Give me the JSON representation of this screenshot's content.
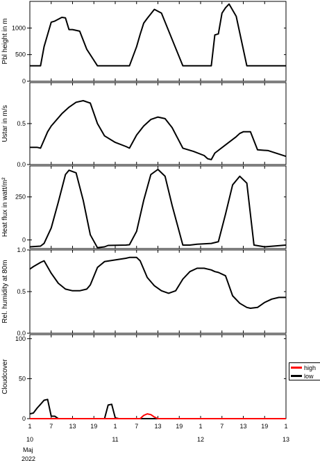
{
  "chart_data": [
    {
      "type": "line",
      "ylabel": "Pbl height in m",
      "ylim": [
        0,
        1500
      ],
      "yticks": [
        0,
        500,
        1000
      ],
      "x": [
        0,
        3,
        4,
        6,
        7,
        9,
        10,
        11,
        12,
        14,
        16,
        19,
        24,
        27,
        28,
        30,
        31,
        32,
        33,
        35,
        37,
        43,
        48,
        51,
        52,
        53,
        54,
        55,
        56,
        58,
        61,
        72
      ],
      "series": [
        {
          "name": "",
          "color": "#000000",
          "values": [
            290,
            290,
            650,
            1110,
            1130,
            1200,
            1190,
            970,
            970,
            940,
            600,
            290,
            290,
            290,
            290,
            650,
            880,
            1090,
            1180,
            1350,
            1280,
            290,
            290,
            290,
            870,
            890,
            1280,
            1380,
            1450,
            1220,
            290,
            290
          ]
        }
      ]
    },
    {
      "type": "line",
      "ylabel": "Ustar in m/s",
      "ylim": [
        0,
        1.0
      ],
      "yticks": [
        0.0,
        0.5
      ],
      "x": [
        0,
        2,
        3,
        5,
        6,
        9,
        11,
        13,
        15,
        17,
        19,
        21,
        24,
        27,
        28,
        30,
        32,
        34,
        36,
        38,
        40,
        43,
        46,
        49,
        50,
        51,
        52,
        55,
        58,
        59,
        60,
        62,
        64,
        67,
        72
      ],
      "series": [
        {
          "name": "",
          "color": "#000000",
          "values": [
            0.21,
            0.21,
            0.2,
            0.4,
            0.47,
            0.62,
            0.7,
            0.76,
            0.78,
            0.75,
            0.5,
            0.35,
            0.27,
            0.22,
            0.2,
            0.36,
            0.47,
            0.55,
            0.58,
            0.56,
            0.45,
            0.2,
            0.16,
            0.11,
            0.07,
            0.06,
            0.14,
            0.24,
            0.34,
            0.38,
            0.4,
            0.4,
            0.18,
            0.17,
            0.1
          ]
        }
      ]
    },
    {
      "type": "line",
      "ylabel": "Heat flux in watt/m²",
      "ylim": [
        -50,
        430
      ],
      "yticks": [
        0,
        250
      ],
      "x": [
        0,
        3,
        4,
        6,
        8,
        10,
        11,
        13,
        15,
        17,
        19,
        21,
        22,
        27,
        28,
        30,
        32,
        34,
        36,
        38,
        40,
        43,
        45,
        47,
        51,
        53,
        55,
        57,
        59,
        61,
        63,
        66,
        72
      ],
      "series": [
        {
          "name": "",
          "color": "#000000",
          "values": [
            -40,
            -36,
            -20,
            70,
            220,
            380,
            405,
            390,
            230,
            30,
            -45,
            -40,
            -32,
            -30,
            -28,
            50,
            230,
            380,
            410,
            370,
            200,
            -30,
            -30,
            -25,
            -20,
            -10,
            150,
            320,
            370,
            330,
            -30,
            -40,
            -30
          ]
        }
      ]
    },
    {
      "type": "line",
      "ylabel": "Rel. humidity at 80m",
      "ylim": [
        0,
        1.0
      ],
      "yticks": [
        0.0,
        0.5,
        1.0
      ],
      "x": [
        0,
        1,
        3,
        4,
        6,
        8,
        10,
        12,
        14,
        16,
        17,
        19,
        21,
        24,
        27,
        28,
        30,
        31,
        33,
        35,
        37,
        39,
        41,
        43,
        45,
        47,
        49,
        51,
        52,
        53,
        55,
        57,
        59,
        61,
        62,
        64,
        66,
        68,
        70,
        72
      ],
      "series": [
        {
          "name": "",
          "color": "#000000",
          "values": [
            0.77,
            0.8,
            0.85,
            0.87,
            0.72,
            0.6,
            0.53,
            0.51,
            0.51,
            0.53,
            0.58,
            0.79,
            0.86,
            0.88,
            0.9,
            0.91,
            0.91,
            0.87,
            0.67,
            0.57,
            0.51,
            0.48,
            0.51,
            0.65,
            0.74,
            0.78,
            0.78,
            0.76,
            0.74,
            0.73,
            0.69,
            0.45,
            0.36,
            0.31,
            0.3,
            0.31,
            0.37,
            0.41,
            0.43,
            0.43
          ]
        }
      ]
    },
    {
      "type": "line",
      "ylabel": "Cloudcover",
      "ylim": [
        0,
        100
      ],
      "yticks": [
        0,
        50,
        100
      ],
      "x": [
        0,
        1,
        2,
        3,
        4,
        5,
        6,
        7,
        8,
        9,
        10,
        20,
        21,
        22,
        23,
        24,
        25,
        30,
        31,
        32,
        33,
        34,
        35,
        36,
        72
      ],
      "series": [
        {
          "name": "high",
          "color": "#ff0000",
          "values": [
            0,
            0,
            0,
            0,
            0,
            0,
            0,
            0,
            0,
            0,
            0,
            0,
            0,
            0,
            0,
            0,
            0,
            0,
            0,
            4,
            6,
            5,
            2,
            0,
            0
          ]
        },
        {
          "name": "low",
          "color": "#000000",
          "values": [
            6,
            7,
            13,
            18,
            23,
            24,
            3,
            3,
            0,
            0,
            0,
            0,
            0,
            17,
            18,
            1,
            0,
            0,
            0,
            0,
            0,
            0,
            0,
            0,
            0
          ]
        }
      ]
    }
  ],
  "xaxis": {
    "range_hours": [
      0,
      72
    ],
    "tick_step_hours": 6,
    "tick_labels": [
      "1",
      "7",
      "13",
      "19",
      "1",
      "7",
      "13",
      "19",
      "1",
      "7",
      "13",
      "19",
      "1"
    ],
    "day_labels": [
      {
        "hour": 0,
        "text": "10"
      },
      {
        "hour": 24,
        "text": "11"
      },
      {
        "hour": 48,
        "text": "12"
      },
      {
        "hour": 72,
        "text": "13"
      }
    ],
    "month_label": "Maj",
    "year_label": "2022"
  },
  "legend": {
    "entries": [
      {
        "label": "high",
        "color": "#ff0000"
      },
      {
        "label": "low",
        "color": "#000000"
      }
    ]
  }
}
